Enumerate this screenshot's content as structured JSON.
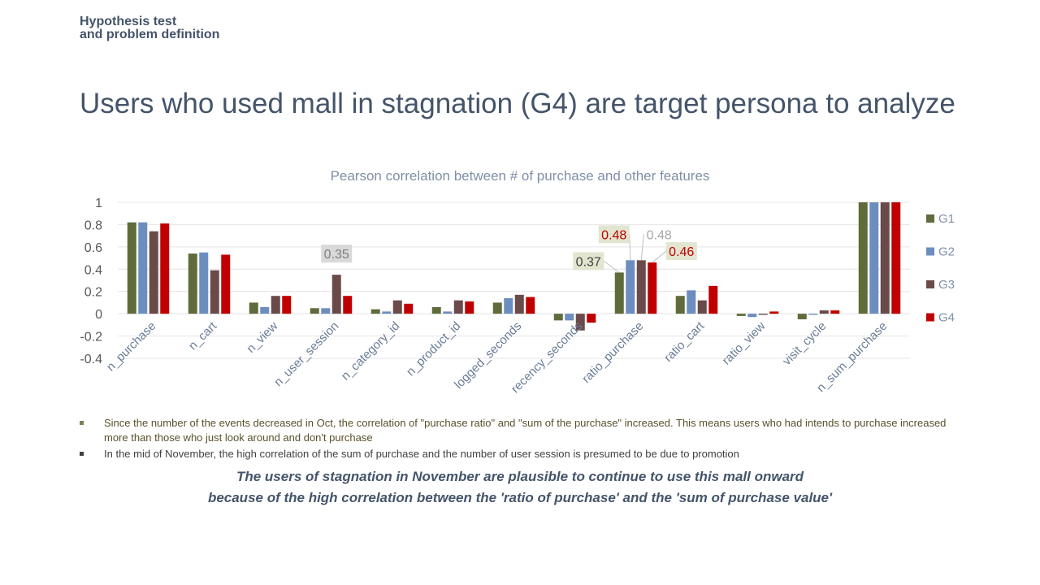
{
  "slide": {
    "section_line1": "Hypothesis test",
    "section_line2": "and problem definition",
    "headline": "Users who used mall in stagnation (G4) are target persona to analyze"
  },
  "chart_data": {
    "type": "bar",
    "title": "Pearson correlation between # of purchase and other features",
    "xlabel": "",
    "ylabel": "",
    "ylim": [
      -0.4,
      1
    ],
    "yticks": [
      "1",
      "0.8",
      "0.6",
      "0.4",
      "0.2",
      "0",
      "-0.2",
      "-0.4"
    ],
    "grid": true,
    "legend_position": "right",
    "categories": [
      "n_purchase",
      "n_cart",
      "n_view",
      "n_user_session",
      "n_category_id",
      "n_product_id",
      "logged_seconds",
      "recency_seconds",
      "ratio_purchase",
      "ratio_cart",
      "ratio_view",
      "visit_cycle",
      "n_sum_purchase"
    ],
    "series": [
      {
        "name": "G1",
        "color": "#5f6b3a",
        "values": [
          0.82,
          0.54,
          0.1,
          0.05,
          0.04,
          0.06,
          0.1,
          -0.06,
          0.37,
          0.16,
          -0.02,
          -0.05,
          1.0
        ]
      },
      {
        "name": "G2",
        "color": "#6c8ebf",
        "values": [
          0.82,
          0.55,
          0.06,
          0.05,
          0.02,
          0.02,
          0.14,
          -0.06,
          0.48,
          0.21,
          -0.03,
          -0.01,
          1.0
        ]
      },
      {
        "name": "G3",
        "color": "#6b4a4a",
        "values": [
          0.74,
          0.39,
          0.16,
          0.35,
          0.12,
          0.12,
          0.17,
          -0.15,
          0.48,
          0.12,
          -0.01,
          0.03,
          1.0
        ]
      },
      {
        "name": "G4",
        "color": "#c00000",
        "values": [
          0.81,
          0.53,
          0.16,
          0.16,
          0.09,
          0.11,
          0.15,
          -0.08,
          0.46,
          0.25,
          0.02,
          0.03,
          1.0
        ]
      }
    ],
    "data_labels": [
      {
        "category": "n_user_session",
        "series": "G3",
        "text": "0.35",
        "color": "#7f7f7f",
        "bg": "#d9d9d9"
      },
      {
        "category": "ratio_purchase",
        "series": "G1",
        "text": "0.37",
        "color": "#404040",
        "bg": "#e2e5d0"
      },
      {
        "category": "ratio_purchase",
        "series": "G2",
        "text": "0.48",
        "color": "#c00000",
        "bg": "#e2e5d0"
      },
      {
        "category": "ratio_purchase",
        "series": "G3",
        "text": "0.48",
        "color": "#a6a6a6",
        "bg": ""
      },
      {
        "category": "ratio_purchase",
        "series": "G4",
        "text": "0.46",
        "color": "#c00000",
        "bg": "#e2e5d0"
      }
    ]
  },
  "notes": [
    "Since the number of the events decreased in Oct, the correlation of \"purchase ratio\" and \"sum of the purchase\" increased. This means users who had intends to purchase increased more than those who just look around and don't purchase",
    "In the mid of November, the high correlation of the sum of purchase and the number of user session is presumed to be due to promotion"
  ],
  "conclusion": {
    "line1": "The users of stagnation in November are plausible to continue to use this mall onward",
    "line2": "because of the high correlation between the 'ratio of purchase' and the 'sum of purchase value'"
  }
}
